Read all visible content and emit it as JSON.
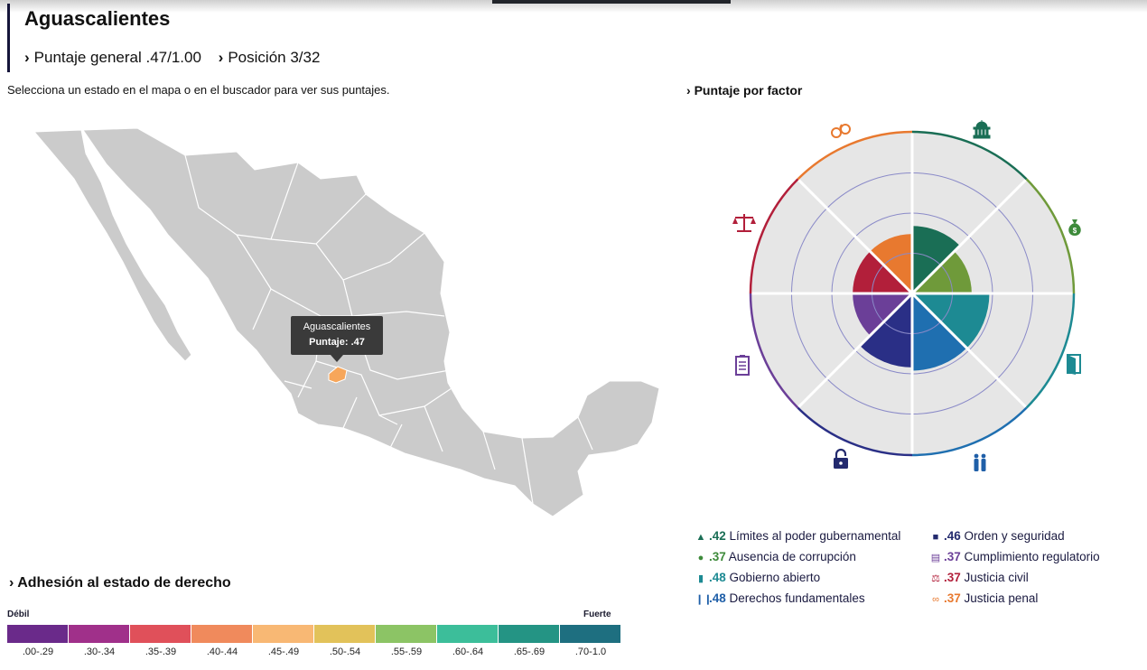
{
  "header": {
    "state_name": "Aguascalientes",
    "overall_score": "Puntaje general .47/1.00",
    "position": "Posición 3/32"
  },
  "instruction": "Selecciona un estado en el mapa o en el buscador para ver sus puntajes.",
  "map": {
    "tooltip_state": "Aguascalientes",
    "tooltip_score": "Puntaje: .47",
    "base_color": "#cbcbcb",
    "highlight_color": "#f7a65a"
  },
  "factor_panel": {
    "heading": "Puntaje por factor",
    "icons": [
      "capitol-icon",
      "money-bag-icon",
      "door-icon",
      "people-icon",
      "padlock-icon",
      "clipboard-icon",
      "scales-icon",
      "handcuffs-icon"
    ]
  },
  "factors": [
    {
      "score": ".42",
      "label": "Límites al poder gubernamental",
      "value": 0.42,
      "color": "#1a6e55",
      "icon": "capitol-icon"
    },
    {
      "score": ".37",
      "label": "Ausencia de corrupción",
      "value": 0.37,
      "color": "#6f9a3a",
      "icon": "money-bag-icon"
    },
    {
      "score": ".48",
      "label": "Gobierno abierto",
      "value": 0.48,
      "color": "#1d8a93",
      "icon": "door-icon"
    },
    {
      "score": ".48",
      "label": "Derechos fundamentales",
      "value": 0.48,
      "color": "#1f6fb0",
      "icon": "people-icon"
    },
    {
      "score": ".46",
      "label": "Orden y seguridad",
      "value": 0.46,
      "color": "#2a2f86",
      "icon": "padlock-icon"
    },
    {
      "score": ".37",
      "label": "Cumplimiento regulatorio",
      "value": 0.37,
      "color": "#6b3f98",
      "icon": "clipboard-icon"
    },
    {
      "score": ".37",
      "label": "Justicia civil",
      "value": 0.37,
      "color": "#b21f3a",
      "icon": "scales-icon"
    },
    {
      "score": ".37",
      "label": "Justicia penal",
      "value": 0.37,
      "color": "#e8792f",
      "icon": "handcuffs-icon"
    }
  ],
  "adhesion": {
    "heading": "Adhesión al estado de derecho",
    "weak_label": "Débil",
    "strong_label": "Fuerte",
    "ranges": [
      ".00-.29",
      ".30-.34",
      ".35-.39",
      ".40-.44",
      ".45-.49",
      ".50-.54",
      ".55-.59",
      ".60-.64",
      ".65-.69",
      ".70-1.0"
    ],
    "colors": [
      "#6a2a8a",
      "#a0308a",
      "#e0505a",
      "#f08a5c",
      "#f8b874",
      "#e2c25a",
      "#8cc465",
      "#3cbe9a",
      "#249484",
      "#1e6f80"
    ]
  }
}
